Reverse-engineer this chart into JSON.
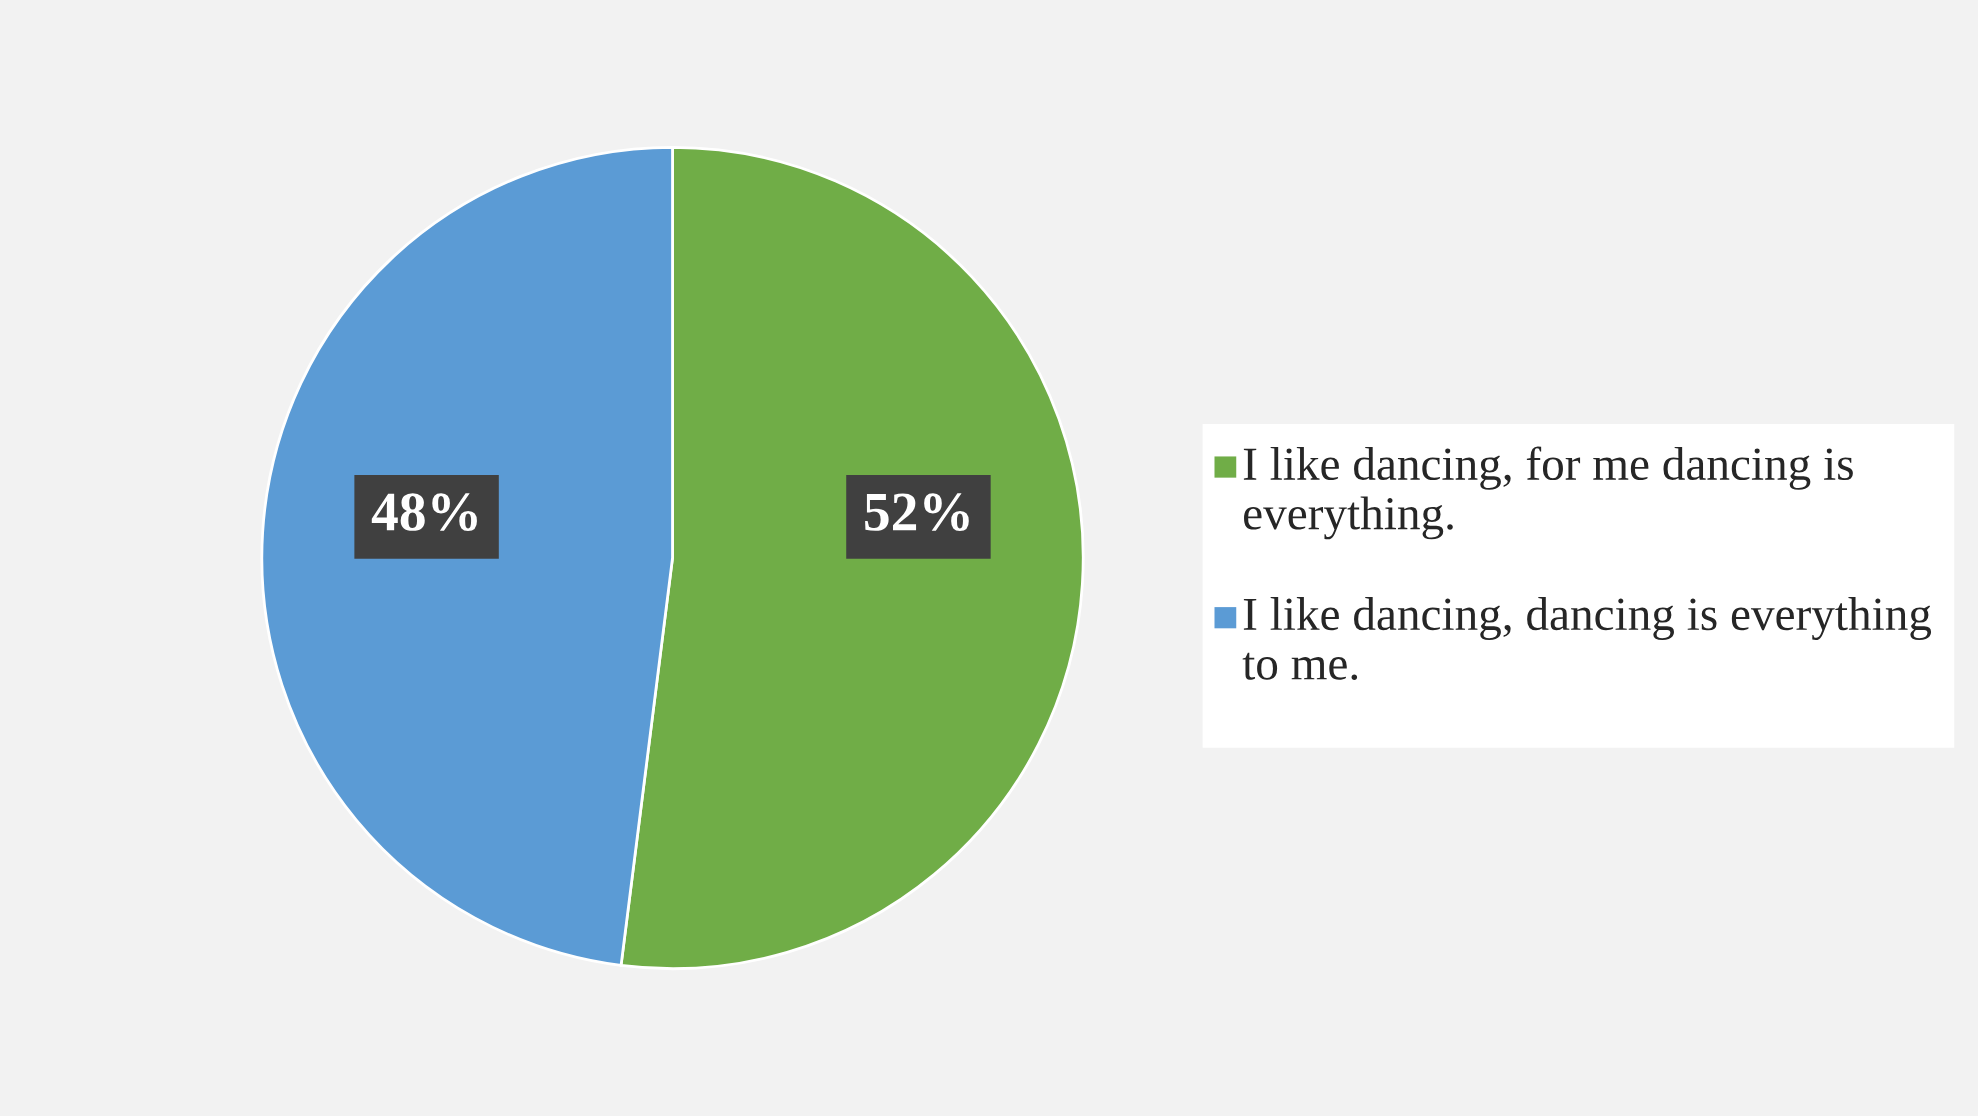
{
  "chart_data": {
    "type": "pie",
    "categories": [
      "I like dancing, for me dancing is everything.",
      "I like dancing, dancing is everything to me."
    ],
    "values": [
      52,
      48
    ],
    "colors": [
      "#70ad47",
      "#5b9bd5"
    ],
    "value_labels": [
      "52%",
      "48%"
    ],
    "legend": "right"
  }
}
